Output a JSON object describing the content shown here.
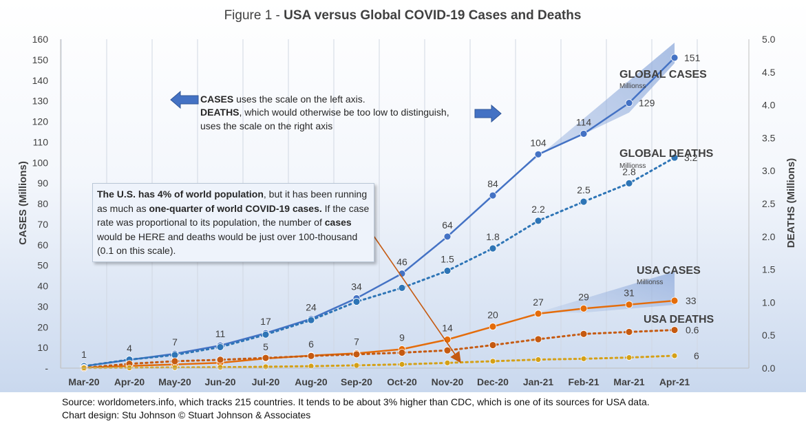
{
  "title_prefix": "Figure 1 - ",
  "title_main": "USA versus Global COVID-19 Cases and Deaths",
  "source_line1": "Source: worldometers.info, which tracks 215 countries. It tends to be about 3% higher than CDC, which is one of its sources for USA data.",
  "source_line2": "Chart design: Stu Johnson  © Stuart Johnson & Associates",
  "note_arrows": {
    "cases_bold": "CASES",
    "cases_rest": " uses the scale on the left axis.",
    "deaths_bold": "DEATHS",
    "deaths_rest": ", which would otherwise be too low to distinguish,",
    "deaths_line2": "uses the scale on the right axis"
  },
  "callout": {
    "p1_bold": "The U.S. has 4% of world population",
    "p1_rest": ", but it has been running as much as ",
    "p2_bold": "one-quarter of world COVID-19 cases.",
    "p2_rest": " If the case rate was proportional to its population, the number of ",
    "p3_bold": "cases",
    "p3_rest": " would be HERE and deaths would be just over 100-thousand (0.1 on this scale)."
  },
  "series_titles": {
    "global_cases": "GLOBAL CASES",
    "global_cases_sub": "Millionss",
    "global_deaths": "GLOBAL DEATHS",
    "global_deaths_sub": "Millionss",
    "usa_cases": "USA CASES",
    "usa_cases_sub": "Millionss",
    "usa_deaths": "USA DEATHS"
  },
  "colors": {
    "global_cases": "#4472c4",
    "global_deaths": "#2e75b6",
    "usa_cases": "#e46c0a",
    "usa_deaths": "#c55a11",
    "proportional": "#d4a017",
    "arrow_blue": "#4472c4",
    "arrow_orange": "#c55a11"
  },
  "chart_data": {
    "type": "line",
    "categories": [
      "Mar-20",
      "Apr-20",
      "May-20",
      "Jun-20",
      "Jul-20",
      "Aug-20",
      "Sep-20",
      "Oct-20",
      "Nov-20",
      "Dec-20",
      "Jan-21",
      "Feb-21",
      "Mar-21",
      "Apr-21"
    ],
    "ylabel": "CASES (Millions)",
    "y2label": "DEATHS (Millions)",
    "ylim": [
      0,
      160
    ],
    "y2lim": [
      0,
      5.0
    ],
    "yticks": [
      "-",
      "10",
      "20",
      "30",
      "40",
      "50",
      "60",
      "70",
      "80",
      "90",
      "100",
      "110",
      "120",
      "130",
      "140",
      "150",
      "160"
    ],
    "y2ticks": [
      "0.0",
      "0.5",
      "1.0",
      "1.5",
      "2.0",
      "2.5",
      "3.0",
      "3.5",
      "4.0",
      "4.5",
      "5.0"
    ],
    "grid": "vertical",
    "series": [
      {
        "name": "GLOBAL CASES",
        "axis": "left",
        "style": "solid",
        "values": [
          1,
          4,
          7,
          11,
          17,
          24,
          34,
          46,
          64,
          84,
          104,
          114,
          129,
          151
        ],
        "labels": [
          "1",
          "4",
          "7",
          "11",
          "17",
          "24",
          "34",
          "46",
          "64",
          "84",
          "104",
          "114",
          "129",
          "151"
        ]
      },
      {
        "name": "GLOBAL DEATHS",
        "axis": "right",
        "style": "dotted",
        "values": [
          0.03,
          0.13,
          0.2,
          0.32,
          0.51,
          0.73,
          1.01,
          1.22,
          1.48,
          1.82,
          2.24,
          2.53,
          2.81,
          3.2
        ],
        "labels": [
          "",
          "",
          "",
          "",
          "",
          "",
          "",
          "",
          "1.5",
          "1.8",
          "2.2",
          "2.5",
          "2.8",
          "3.2"
        ]
      },
      {
        "name": "USA CASES",
        "axis": "left",
        "style": "solid",
        "values": [
          0.2,
          1.1,
          1.8,
          2.6,
          4.7,
          6.1,
          7.2,
          9.2,
          13.9,
          20.2,
          26.5,
          29,
          30.9,
          32.8
        ],
        "labels": [
          "",
          "",
          "",
          "",
          "5",
          "6",
          "7",
          "9",
          "14",
          "20",
          "27",
          "29",
          "31",
          "33"
        ]
      },
      {
        "name": "USA DEATHS",
        "axis": "right",
        "style": "dotted",
        "values": [
          0.003,
          0.066,
          0.105,
          0.127,
          0.155,
          0.185,
          0.21,
          0.235,
          0.27,
          0.35,
          0.44,
          0.52,
          0.55,
          0.58
        ],
        "labels": [
          "",
          "",
          "",
          "",
          "",
          "",
          "",
          "",
          "",
          "",
          "",
          "",
          "",
          "0.6"
        ]
      },
      {
        "axis": "left",
        "style": "dotted",
        "values": [
          0.1,
          0.2,
          0.3,
          0.44,
          0.68,
          0.96,
          1.36,
          1.84,
          2.56,
          3.36,
          4.16,
          4.56,
          5.16,
          6.04
        ],
        "labels": [
          "",
          "",
          "",
          "",
          "",
          "",
          "",
          "",
          "",
          "",
          "",
          "",
          "",
          "6"
        ]
      }
    ]
  }
}
